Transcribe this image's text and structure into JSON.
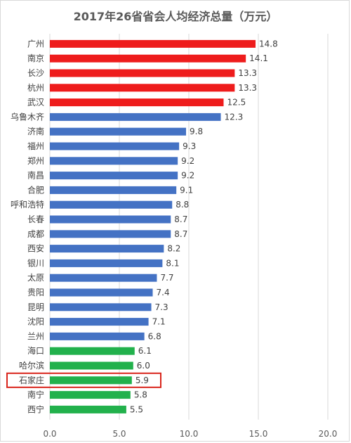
{
  "chart_data": {
    "type": "bar",
    "orientation": "horizontal",
    "title": "2017年26省省会人均经济总量（万元）",
    "categories": [
      "广州",
      "南京",
      "长沙",
      "杭州",
      "武汉",
      "乌鲁木齐",
      "济南",
      "福州",
      "郑州",
      "南昌",
      "合肥",
      "呼和浩特",
      "长春",
      "成都",
      "西安",
      "银川",
      "太原",
      "贵阳",
      "昆明",
      "沈阳",
      "兰州",
      "海口",
      "哈尔滨",
      "石家庄",
      "南宁",
      "西宁"
    ],
    "values": [
      14.8,
      14.1,
      13.3,
      13.3,
      12.5,
      12.3,
      9.8,
      9.3,
      9.2,
      9.2,
      9.1,
      8.8,
      8.7,
      8.7,
      8.2,
      8.1,
      7.7,
      7.4,
      7.3,
      7.1,
      6.8,
      6.1,
      6.0,
      5.9,
      5.8,
      5.5
    ],
    "value_labels": [
      "14.8",
      "14.1",
      "13.3",
      "13.3",
      "12.5",
      "12.3",
      "9.8",
      "9.3",
      "9.2",
      "9.2",
      "9.1",
      "8.8",
      "8.7",
      "8.7",
      "8.2",
      "8.1",
      "7.7",
      "7.4",
      "7.3",
      "7.1",
      "6.8",
      "6.1",
      "6.0",
      "5.9",
      "5.8",
      "5.5"
    ],
    "bar_colors": [
      "#ee1c1c",
      "#ee1c1c",
      "#ee1c1c",
      "#ee1c1c",
      "#ee1c1c",
      "#4472c4",
      "#4472c4",
      "#4472c4",
      "#4472c4",
      "#4472c4",
      "#4472c4",
      "#4472c4",
      "#4472c4",
      "#4472c4",
      "#4472c4",
      "#4472c4",
      "#4472c4",
      "#4472c4",
      "#4472c4",
      "#4472c4",
      "#4472c4",
      "#22b14c",
      "#22b14c",
      "#22b14c",
      "#22b14c",
      "#22b14c"
    ],
    "xlim": [
      0,
      20
    ],
    "xticks": [
      0,
      5,
      10,
      15,
      20
    ],
    "xtick_labels": [
      "0.0",
      "5.0",
      "10.0",
      "15.0",
      "20.0"
    ],
    "grid": true,
    "highlight": {
      "category": "石家庄",
      "color": "#d9251c"
    }
  }
}
